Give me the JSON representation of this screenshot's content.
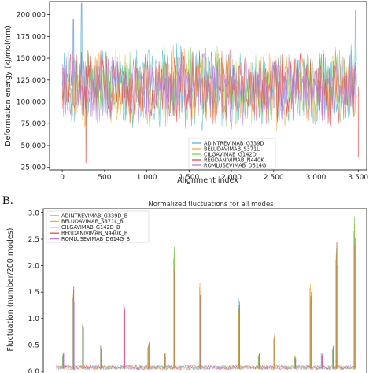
{
  "chart_data": [
    {
      "type": "line",
      "title": "",
      "xlabel": "Alignment index",
      "ylabel": "Deformation energy (kJ/mol/nm)",
      "xlim": [
        -150,
        3600
      ],
      "ylim": [
        22000,
        215000
      ],
      "xticks": [
        0,
        500,
        1000,
        1500,
        2000,
        2500,
        3000,
        3500
      ],
      "xtick_labels": [
        "0",
        "500",
        "1 000",
        "1 500",
        "2 000",
        "2 500",
        "3 000",
        "3 500"
      ],
      "yticks": [
        25000,
        50000,
        75000,
        100000,
        125000,
        150000,
        175000,
        200000
      ],
      "ytick_labels": [
        "25,000",
        "50,000",
        "75,000",
        "100,000",
        "125,000",
        "150,000",
        "175,000",
        "200,000"
      ],
      "legend_position": "lower-right",
      "grid": false,
      "series": [
        {
          "name": "ADINTREVIMAB_G339D",
          "color": "#4fb8d6"
        },
        {
          "name": "BELUDAVIMAB_S371L",
          "color": "#f2ad3d"
        },
        {
          "name": "CILGAVIMAB_G142D",
          "color": "#7ccf63"
        },
        {
          "name": "REGDANIVIMAB_N440K",
          "color": "#e8474c"
        },
        {
          "name": "ROMLUSEVIMAB_D614G",
          "color": "#b77ce8"
        }
      ],
      "x_range": [
        0,
        3480
      ],
      "central_value": 117000,
      "notable_peaks": [
        {
          "x": 130,
          "y": 195000
        },
        {
          "x": 230,
          "y": 213000
        },
        {
          "x": 3470,
          "y": 205000
        }
      ],
      "notable_troughs": [
        {
          "x": 280,
          "y": 30000
        },
        {
          "x": 3500,
          "y": 37000
        }
      ]
    },
    {
      "type": "line",
      "title": "Normalized fluctuations for all modes",
      "xlabel": "",
      "ylabel": "Fluctuation (number/200 modes)",
      "ylim": [
        0,
        3.08
      ],
      "yticks": [
        0.0,
        0.5,
        1.0,
        1.5,
        2.0,
        2.5,
        3.0
      ],
      "ytick_labels": [
        "0.0",
        "0.5",
        "1.0",
        "1.5",
        "2.0",
        "2.5",
        "3.0"
      ],
      "xlim": [
        -150,
        3600
      ],
      "legend_position": "upper-left",
      "grid": false,
      "series": [
        {
          "name": "ADINTREVIMAB_G339D_B",
          "color": "#4fb8d6"
        },
        {
          "name": "BELUDAVIMAB_S371L_B",
          "color": "#f2ad3d"
        },
        {
          "name": "CILGAVIMAB_G142D_B",
          "color": "#7ccf63"
        },
        {
          "name": "REGDANIVIMAB_N440K_B",
          "color": "#e8474c"
        },
        {
          "name": "ROMLUSEVIMAB_D614G_B",
          "color": "#b77ce8"
        }
      ],
      "peaks": [
        {
          "x": 80,
          "y": 0.36
        },
        {
          "x": 200,
          "y": 1.6
        },
        {
          "x": 310,
          "y": 0.96
        },
        {
          "x": 520,
          "y": 0.5
        },
        {
          "x": 790,
          "y": 1.28
        },
        {
          "x": 1070,
          "y": 0.55
        },
        {
          "x": 1260,
          "y": 0.35
        },
        {
          "x": 1370,
          "y": 2.35
        },
        {
          "x": 1670,
          "y": 1.67
        },
        {
          "x": 2120,
          "y": 1.38
        },
        {
          "x": 2350,
          "y": 0.35
        },
        {
          "x": 2530,
          "y": 0.7
        },
        {
          "x": 2770,
          "y": 0.3
        },
        {
          "x": 2950,
          "y": 1.65
        },
        {
          "x": 3080,
          "y": 0.35
        },
        {
          "x": 3210,
          "y": 0.5
        },
        {
          "x": 3250,
          "y": 2.45
        },
        {
          "x": 3460,
          "y": 2.92
        }
      ]
    }
  ],
  "panel_b_label": "B."
}
